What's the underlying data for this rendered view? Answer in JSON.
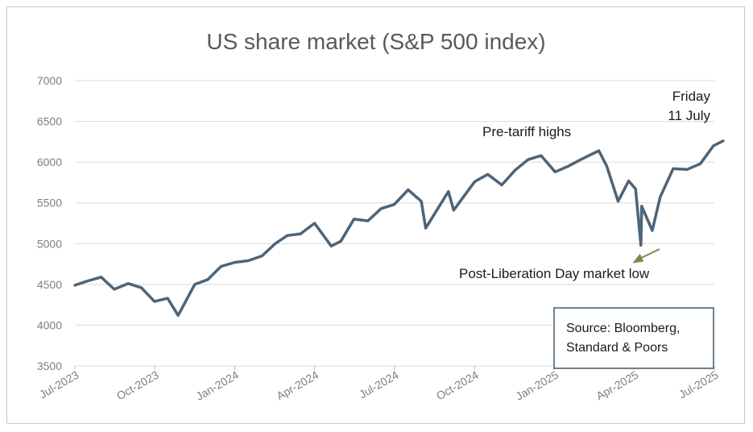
{
  "chart_data": {
    "type": "line",
    "title": "US share market (S&P 500 index)",
    "ylim": [
      3500,
      7000
    ],
    "y_ticks": [
      7000,
      6500,
      6000,
      5500,
      5000,
      4500,
      4000,
      3500
    ],
    "x_ticks": [
      "Jul-2023",
      "Oct-2023",
      "Jan-2024",
      "Apr-2024",
      "Jul-2024",
      "Oct-2024",
      "Jan-2025",
      "Apr-2025",
      "Jul-2025"
    ],
    "grid": true,
    "line_color": "#4d6479",
    "series": [
      {
        "points": [
          [
            "2023-07-01",
            4490
          ],
          [
            "2023-07-15",
            4540
          ],
          [
            "2023-07-31",
            4590
          ],
          [
            "2023-08-15",
            4440
          ],
          [
            "2023-08-31",
            4510
          ],
          [
            "2023-09-15",
            4460
          ],
          [
            "2023-09-30",
            4290
          ],
          [
            "2023-10-15",
            4330
          ],
          [
            "2023-10-27",
            4120
          ],
          [
            "2023-11-15",
            4500
          ],
          [
            "2023-11-30",
            4560
          ],
          [
            "2023-12-15",
            4720
          ],
          [
            "2023-12-31",
            4770
          ],
          [
            "2024-01-15",
            4790
          ],
          [
            "2024-01-31",
            4850
          ],
          [
            "2024-02-15",
            5000
          ],
          [
            "2024-02-29",
            5100
          ],
          [
            "2024-03-15",
            5120
          ],
          [
            "2024-03-31",
            5250
          ],
          [
            "2024-04-19",
            4970
          ],
          [
            "2024-04-30",
            5030
          ],
          [
            "2024-05-15",
            5300
          ],
          [
            "2024-05-31",
            5280
          ],
          [
            "2024-06-15",
            5430
          ],
          [
            "2024-06-30",
            5480
          ],
          [
            "2024-07-16",
            5660
          ],
          [
            "2024-07-31",
            5520
          ],
          [
            "2024-08-05",
            5190
          ],
          [
            "2024-08-31",
            5640
          ],
          [
            "2024-09-06",
            5410
          ],
          [
            "2024-09-30",
            5760
          ],
          [
            "2024-10-15",
            5850
          ],
          [
            "2024-10-31",
            5720
          ],
          [
            "2024-11-15",
            5900
          ],
          [
            "2024-11-30",
            6030
          ],
          [
            "2024-12-15",
            6080
          ],
          [
            "2024-12-31",
            5880
          ],
          [
            "2025-01-15",
            5950
          ],
          [
            "2025-01-31",
            6040
          ],
          [
            "2025-02-19",
            6140
          ],
          [
            "2025-02-28",
            5950
          ],
          [
            "2025-03-13",
            5520
          ],
          [
            "2025-03-25",
            5770
          ],
          [
            "2025-04-02",
            5670
          ],
          [
            "2025-04-08",
            4980
          ],
          [
            "2025-04-09",
            5460
          ],
          [
            "2025-04-21",
            5160
          ],
          [
            "2025-04-30",
            5570
          ],
          [
            "2025-05-15",
            5920
          ],
          [
            "2025-05-31",
            5910
          ],
          [
            "2025-06-15",
            5980
          ],
          [
            "2025-06-30",
            6200
          ],
          [
            "2025-07-11",
            6260
          ]
        ]
      }
    ],
    "annotations": {
      "friday_line1": "Friday",
      "friday_line2": "11 July",
      "pre_tariff": "Pre-tariff highs",
      "post_liberation": "Post-Liberation Day market low"
    },
    "source": {
      "line1": "Source: Bloomberg,",
      "line2": "Standard & Poors"
    }
  }
}
